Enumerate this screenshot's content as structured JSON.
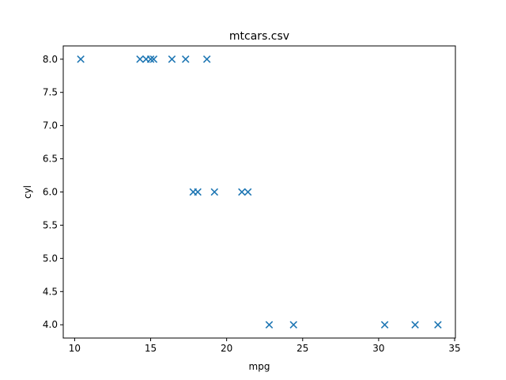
{
  "chart_data": {
    "type": "scatter",
    "title": "mtcars.csv",
    "xlabel": "mpg",
    "ylabel": "cyl",
    "xlim": [
      9.25,
      35.05
    ],
    "ylim": [
      3.8,
      8.2
    ],
    "xticks": [
      10,
      15,
      20,
      25,
      30,
      35
    ],
    "yticks": [
      4.0,
      4.5,
      5.0,
      5.5,
      6.0,
      6.5,
      7.0,
      7.5,
      8.0
    ],
    "marker": "x",
    "grid": false,
    "color": "#1f77b4",
    "series": [
      {
        "values": [
          {
            "x": 10.4,
            "y": 8
          },
          {
            "x": 14.3,
            "y": 8
          },
          {
            "x": 14.7,
            "y": 8
          },
          {
            "x": 15.0,
            "y": 8
          },
          {
            "x": 15.2,
            "y": 8
          },
          {
            "x": 16.4,
            "y": 8
          },
          {
            "x": 17.3,
            "y": 8
          },
          {
            "x": 18.7,
            "y": 8
          },
          {
            "x": 17.8,
            "y": 6
          },
          {
            "x": 18.1,
            "y": 6
          },
          {
            "x": 19.2,
            "y": 6
          },
          {
            "x": 21.0,
            "y": 6
          },
          {
            "x": 21.4,
            "y": 6
          },
          {
            "x": 22.8,
            "y": 4
          },
          {
            "x": 24.4,
            "y": 4
          },
          {
            "x": 30.4,
            "y": 4
          },
          {
            "x": 32.4,
            "y": 4
          },
          {
            "x": 33.9,
            "y": 4
          }
        ]
      }
    ]
  }
}
